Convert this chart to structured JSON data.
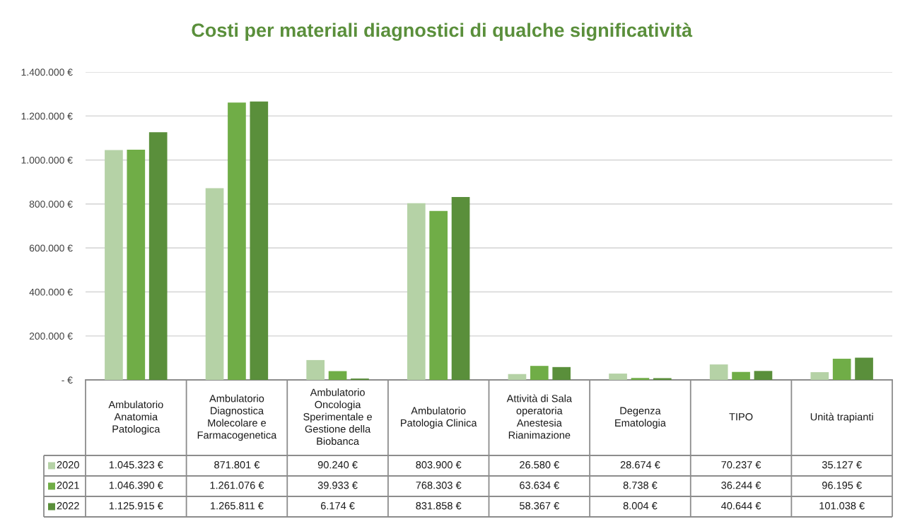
{
  "chart_data": {
    "type": "bar",
    "title": "Costi per materiali diagnostici di qualche significatività",
    "categories": [
      "Ambulatorio Anatomia Patologica",
      "Ambulatorio Diagnostica Molecolare e Farmacogenetica",
      "Ambulatorio Oncologia Sperimentale e Gestione della Biobanca",
      "Ambulatorio Patologia Clinica",
      "Attività di Sala operatoria Anestesia Rianimazione",
      "Degenza Ematologia",
      "TIPO",
      "Unità trapianti"
    ],
    "series": [
      {
        "name": "2020",
        "color": "#b5d2a6",
        "values": [
          1045323,
          871801,
          90240,
          803900,
          26580,
          28674,
          70237,
          35127
        ],
        "value_labels": [
          "1.045.323 €",
          "871.801 €",
          "90.240 €",
          "803.900 €",
          "26.580 €",
          "28.674 €",
          "70.237 €",
          "35.127 €"
        ]
      },
      {
        "name": "2021",
        "color": "#70ad47",
        "values": [
          1046390,
          1261076,
          39933,
          768303,
          63634,
          8738,
          36244,
          96195
        ],
        "value_labels": [
          "1.046.390 €",
          "1.261.076 €",
          "39.933 €",
          "768.303 €",
          "63.634 €",
          "8.738 €",
          "36.244 €",
          "96.195 €"
        ]
      },
      {
        "name": "2022",
        "color": "#5a8f3b",
        "values": [
          1125915,
          1265811,
          6174,
          831858,
          58367,
          8004,
          40644,
          101038
        ],
        "value_labels": [
          "1.125.915 €",
          "1.265.811 €",
          "6.174 €",
          "831.858 €",
          "58.367 €",
          "8.004 €",
          "40.644 €",
          "101.038 €"
        ]
      }
    ],
    "ylim": [
      0,
      1400000
    ],
    "yticks": [
      {
        "value": 0,
        "label": "- €"
      },
      {
        "value": 200000,
        "label": "200.000 €"
      },
      {
        "value": 400000,
        "label": "400.000 €"
      },
      {
        "value": 600000,
        "label": "600.000 €"
      },
      {
        "value": 800000,
        "label": "800.000 €"
      },
      {
        "value": 1000000,
        "label": "1.000.000 €"
      },
      {
        "value": 1200000,
        "label": "1.200.000 €"
      },
      {
        "value": 1400000,
        "label": "1.400.000 €"
      }
    ],
    "grid": "y",
    "legend": "bottom"
  }
}
